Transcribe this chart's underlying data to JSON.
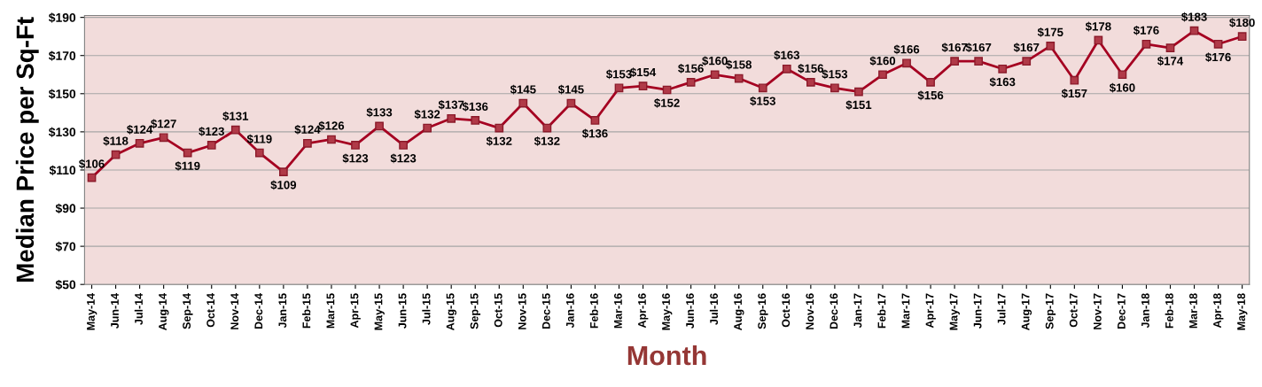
{
  "chart_data": {
    "type": "line",
    "categories": [
      "May-14",
      "Jun-14",
      "Jul-14",
      "Aug-14",
      "Sep-14",
      "Oct-14",
      "Nov-14",
      "Dec-14",
      "Jan-15",
      "Feb-15",
      "Mar-15",
      "Apr-15",
      "May-15",
      "Jun-15",
      "Jul-15",
      "Aug-15",
      "Sep-15",
      "Oct-15",
      "Nov-15",
      "Dec-15",
      "Jan-16",
      "Feb-16",
      "Mar-16",
      "Apr-16",
      "May-16",
      "Jun-16",
      "Jul-16",
      "Aug-16",
      "Sep-16",
      "Oct-16",
      "Nov-16",
      "Dec-16",
      "Jan-17",
      "Feb-17",
      "Mar-17",
      "Apr-17",
      "May-17",
      "Jun-17",
      "Jul-17",
      "Aug-17",
      "Sep-17",
      "Oct-17",
      "Nov-17",
      "Dec-17",
      "Jan-18",
      "Feb-18",
      "Mar-18",
      "Apr-18",
      "May-18"
    ],
    "series": [
      {
        "color": "#a50021",
        "values": [
          106,
          118,
          124,
          127,
          119,
          123,
          131,
          119,
          109,
          124,
          126,
          123,
          133,
          123,
          132,
          137,
          136,
          132,
          145,
          132,
          145,
          136,
          153,
          154,
          152,
          156,
          160,
          158,
          153,
          163,
          156,
          153,
          151,
          160,
          166,
          156,
          167,
          167,
          163,
          167,
          175,
          157,
          178,
          160,
          176,
          174,
          183,
          176,
          180
        ],
        "value_labels": [
          "$106",
          "$118",
          "$124",
          "$127",
          "$119",
          "$123",
          "$131",
          "$119",
          "$109",
          "$124",
          "$126",
          "$123",
          "$133",
          "$123",
          "$132",
          "$137",
          "$136",
          "$132",
          "$145",
          "$132",
          "$145",
          "$136",
          "$153",
          "$154",
          "$152",
          "$156",
          "$160",
          "$158",
          "$153",
          "$163",
          "$156",
          "$153",
          "$151",
          "$160",
          "$166",
          "$156",
          "$167",
          "$167",
          "$163",
          "$167",
          "$175",
          "$157",
          "$178",
          "$160",
          "$176",
          "$174",
          "$183",
          "$176",
          "$180"
        ]
      }
    ],
    "xlabel": "Month",
    "ylabel": "Median Price per Sq-Ft",
    "ylim": [
      50,
      191
    ],
    "yticks": [
      {
        "value": 50,
        "label": "$50"
      },
      {
        "value": 70,
        "label": "$70"
      },
      {
        "value": 90,
        "label": "$90"
      },
      {
        "value": 110,
        "label": "$110"
      },
      {
        "value": 130,
        "label": "$130"
      },
      {
        "value": 150,
        "label": "$150"
      },
      {
        "value": 170,
        "label": "$170"
      },
      {
        "value": 190,
        "label": "$190"
      }
    ],
    "grid": "y",
    "marker": "square",
    "line_style": "solid",
    "legend": false
  }
}
